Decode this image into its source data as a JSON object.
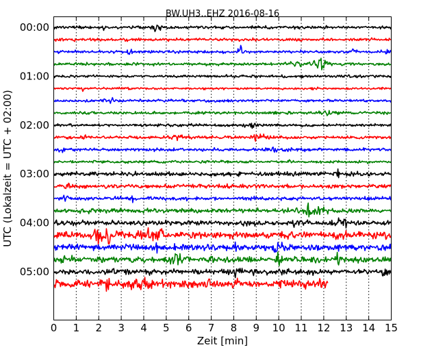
{
  "chart_data": {
    "type": "line",
    "title": "BW.UH3..EHZ 2016-08-16",
    "xlabel": "Zeit  [min]",
    "ylabel": "UTC (Lokalzeit = UTC + 02:00)",
    "xlim": [
      0,
      15
    ],
    "x_ticks": [
      "0",
      "1",
      "2",
      "3",
      "4",
      "5",
      "6",
      "7",
      "8",
      "9",
      "10",
      "11",
      "12",
      "13",
      "14",
      "15"
    ],
    "y_tick_labels": [
      "00:00",
      "01:00",
      "02:00",
      "03:00",
      "04:00",
      "05:00"
    ],
    "trace_interval_min": 15,
    "grid": "vertical dotted",
    "trace_colors": [
      "#000000",
      "#ff0000",
      "#0000ff",
      "#008000"
    ],
    "traces": [
      {
        "start": "00:00",
        "color": "#000000"
      },
      {
        "start": "00:15",
        "color": "#ff0000"
      },
      {
        "start": "00:30",
        "color": "#0000ff"
      },
      {
        "start": "00:45",
        "color": "#008000"
      },
      {
        "start": "01:00",
        "color": "#000000"
      },
      {
        "start": "01:15",
        "color": "#ff0000"
      },
      {
        "start": "01:30",
        "color": "#0000ff"
      },
      {
        "start": "01:45",
        "color": "#008000"
      },
      {
        "start": "02:00",
        "color": "#000000"
      },
      {
        "start": "02:15",
        "color": "#ff0000"
      },
      {
        "start": "02:30",
        "color": "#0000ff"
      },
      {
        "start": "02:45",
        "color": "#008000"
      },
      {
        "start": "03:00",
        "color": "#000000"
      },
      {
        "start": "03:15",
        "color": "#ff0000"
      },
      {
        "start": "03:30",
        "color": "#0000ff"
      },
      {
        "start": "03:45",
        "color": "#008000"
      },
      {
        "start": "04:00",
        "color": "#000000"
      },
      {
        "start": "04:15",
        "color": "#ff0000"
      },
      {
        "start": "04:30",
        "color": "#0000ff"
      },
      {
        "start": "04:45",
        "color": "#008000"
      },
      {
        "start": "05:00",
        "color": "#000000"
      },
      {
        "start": "05:15",
        "color": "#ff0000",
        "end_min": 12.2
      }
    ]
  }
}
